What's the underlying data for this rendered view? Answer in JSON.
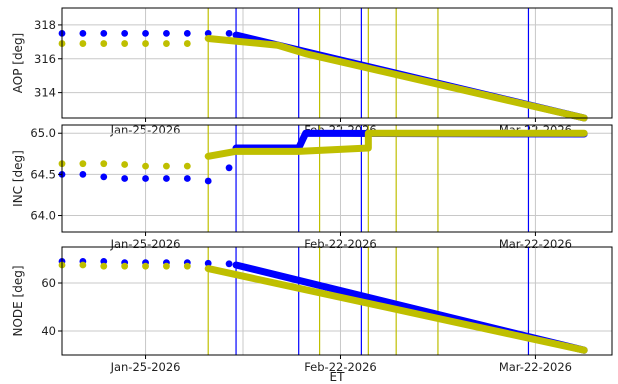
{
  "figure": {
    "xlabel": "ET"
  },
  "chart_data": [
    {
      "type": "scatter",
      "ylabel": "AOP [deg]",
      "x_ticks": [
        "Jan-25-2026",
        "Feb-22-2026",
        "Mar-22-2026"
      ],
      "y_ticks": [
        314,
        316,
        318
      ],
      "ylim": [
        312.5,
        319
      ],
      "grid": true,
      "series": [
        {
          "color": "#0000ff",
          "points": [
            [
              "2026-01-13",
              317.5
            ],
            [
              "2026-01-16",
              317.5
            ],
            [
              "2026-01-19",
              317.5
            ],
            [
              "2026-01-22",
              317.5
            ],
            [
              "2026-01-25",
              317.5
            ],
            [
              "2026-01-28",
              317.5
            ],
            [
              "2026-01-31",
              317.5
            ],
            [
              "2026-02-03",
              317.5
            ],
            [
              "2026-02-06",
              317.5
            ]
          ],
          "trend": [
            [
              "2026-02-07",
              317.4
            ],
            [
              "2026-03-29",
              312.5
            ]
          ]
        },
        {
          "color": "#bfbf00",
          "points": [
            [
              "2026-01-13",
              316.9
            ],
            [
              "2026-01-16",
              316.9
            ],
            [
              "2026-01-19",
              316.9
            ],
            [
              "2026-01-22",
              316.9
            ],
            [
              "2026-01-25",
              316.9
            ],
            [
              "2026-01-28",
              316.9
            ],
            [
              "2026-01-31",
              316.9
            ]
          ],
          "trend": [
            [
              "2026-02-03",
              317.2
            ],
            [
              "2026-02-13",
              316.8
            ],
            [
              "2026-02-17",
              316.3
            ],
            [
              "2026-03-29",
              312.5
            ]
          ]
        }
      ]
    },
    {
      "type": "scatter",
      "ylabel": "INC [deg]",
      "x_ticks": [
        "Jan-25-2026",
        "Feb-22-2026",
        "Mar-22-2026"
      ],
      "y_ticks": [
        "64.0",
        "64.5",
        "65.0"
      ],
      "ylim": [
        63.8,
        65.1
      ],
      "grid": true,
      "series": [
        {
          "color": "#0000ff",
          "points": [
            [
              "2026-01-13",
              64.5
            ],
            [
              "2026-01-16",
              64.5
            ],
            [
              "2026-01-19",
              64.47
            ],
            [
              "2026-01-22",
              64.45
            ],
            [
              "2026-01-25",
              64.45
            ],
            [
              "2026-01-28",
              64.45
            ],
            [
              "2026-01-31",
              64.45
            ],
            [
              "2026-02-03",
              64.42
            ],
            [
              "2026-02-06",
              64.58
            ]
          ],
          "trend": [
            [
              "2026-02-07",
              64.82
            ],
            [
              "2026-02-16",
              64.82
            ],
            [
              "2026-02-17",
              65.0
            ],
            [
              "2026-03-29",
              64.99
            ]
          ]
        },
        {
          "color": "#bfbf00",
          "points": [
            [
              "2026-01-13",
              64.63
            ],
            [
              "2026-01-16",
              64.63
            ],
            [
              "2026-01-19",
              64.63
            ],
            [
              "2026-01-22",
              64.62
            ],
            [
              "2026-01-25",
              64.6
            ],
            [
              "2026-01-28",
              64.6
            ],
            [
              "2026-01-31",
              64.6
            ]
          ],
          "trend": [
            [
              "2026-02-03",
              64.72
            ],
            [
              "2026-02-07",
              64.78
            ],
            [
              "2026-02-16",
              64.78
            ],
            [
              "2026-02-26",
              64.82
            ],
            [
              "2026-02-26",
              65.0
            ],
            [
              "2026-03-29",
              65.0
            ]
          ]
        }
      ]
    },
    {
      "type": "scatter",
      "ylabel": "NODE [deg]",
      "x_ticks": [
        "Jan-25-2026",
        "Feb-22-2026",
        "Mar-22-2026"
      ],
      "y_ticks": [
        40,
        60
      ],
      "ylim": [
        30,
        75
      ],
      "grid": true,
      "series": [
        {
          "color": "#0000ff",
          "points": [
            [
              "2026-01-13",
              69
            ],
            [
              "2026-01-16",
              69
            ],
            [
              "2026-01-19",
              69
            ],
            [
              "2026-01-22",
              68.5
            ],
            [
              "2026-01-25",
              68.5
            ],
            [
              "2026-01-28",
              68.5
            ],
            [
              "2026-01-31",
              68.5
            ],
            [
              "2026-02-03",
              68.2
            ],
            [
              "2026-02-06",
              68
            ]
          ],
          "trend": [
            [
              "2026-02-07",
              67.5
            ],
            [
              "2026-03-29",
              32
            ]
          ]
        },
        {
          "color": "#bfbf00",
          "points": [
            [
              "2026-01-13",
              67.5
            ],
            [
              "2026-01-16",
              67.5
            ],
            [
              "2026-01-19",
              67
            ],
            [
              "2026-01-22",
              67
            ],
            [
              "2026-01-25",
              67
            ],
            [
              "2026-01-28",
              67
            ],
            [
              "2026-01-31",
              67
            ]
          ],
          "trend": [
            [
              "2026-02-03",
              66
            ],
            [
              "2026-03-29",
              32
            ]
          ]
        }
      ]
    }
  ],
  "events": {
    "blue": [
      "2026-02-07",
      "2026-02-16",
      "2026-02-25",
      "2026-03-21"
    ],
    "yellow": [
      "2026-02-03",
      "2026-02-19",
      "2026-02-26",
      "2026-03-02",
      "2026-03-08"
    ]
  }
}
